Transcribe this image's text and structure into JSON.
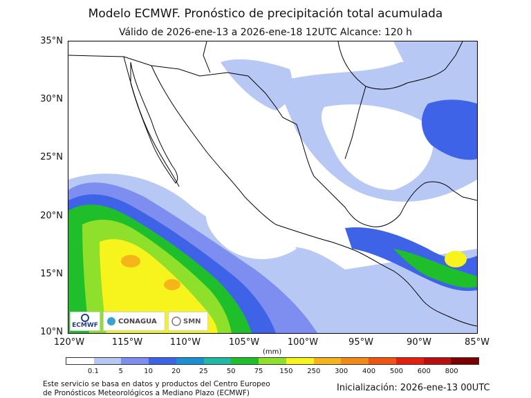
{
  "header": {
    "title": "Modelo ECMWF. Pronóstico de precipitación total acumulada",
    "subtitle": "Válido de 2026-ene-13 a 2026-ene-18 12UTC   Alcance: 120 h"
  },
  "map": {
    "lat_labels": [
      "35°N",
      "30°N",
      "25°N",
      "20°N",
      "15°N",
      "10°N"
    ],
    "lon_labels": [
      "120°W",
      "115°W",
      "110°W",
      "105°W",
      "100°W",
      "95°W",
      "90°W",
      "85°W"
    ]
  },
  "legend": {
    "unit": "(mm)",
    "labels": [
      "0.1",
      "5",
      "10",
      "20",
      "25",
      "50",
      "75",
      "150",
      "250",
      "300",
      "400",
      "500",
      "600",
      "800"
    ],
    "colors": [
      "#ffffff",
      "#b8c8f5",
      "#7d8ef0",
      "#3f63e6",
      "#1a8fd4",
      "#20b9a5",
      "#1fbf2b",
      "#8fe02a",
      "#f7f31c",
      "#f5b51a",
      "#f28a16",
      "#ef5412",
      "#e41f12",
      "#b80f0f",
      "#7a0000"
    ]
  },
  "logos": {
    "ecmwf": "ECMWF",
    "conagua": "CONAGUA",
    "smn": "SMN"
  },
  "footer": {
    "credit_line1": "Este servicio se basa en datos y productos del Centro Europeo",
    "credit_line2": "de Pronósticos Meteorológicos a Mediano Plazo (ECMWF)",
    "init": "Inicialización: 2026-ene-13 00UTC"
  }
}
